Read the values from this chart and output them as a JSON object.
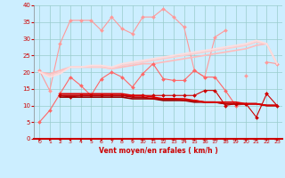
{
  "x": [
    0,
    1,
    2,
    3,
    4,
    5,
    6,
    7,
    8,
    9,
    10,
    11,
    12,
    13,
    14,
    15,
    16,
    17,
    18,
    19,
    20,
    21,
    22,
    23
  ],
  "series": [
    {
      "color": "#ff9999",
      "lw": 0.8,
      "marker": "D",
      "ms": 2.0,
      "values": [
        20.5,
        14.5,
        28.5,
        35.5,
        35.5,
        35.5,
        32.5,
        36.5,
        33.0,
        31.5,
        36.5,
        36.5,
        39.0,
        36.5,
        33.5,
        20.5,
        18.5,
        30.5,
        32.5,
        null,
        19.0,
        null,
        23.0,
        22.5
      ]
    },
    {
      "color": "#ffbbbb",
      "lw": 1.2,
      "marker": null,
      "ms": 0,
      "values": [
        20.0,
        19.5,
        20.5,
        21.5,
        21.5,
        21.5,
        21.5,
        21.0,
        21.5,
        22.0,
        22.5,
        22.5,
        23.0,
        23.5,
        24.0,
        24.5,
        25.0,
        25.5,
        26.0,
        26.5,
        27.0,
        28.0,
        28.5,
        22.5
      ]
    },
    {
      "color": "#ffcccc",
      "lw": 1.2,
      "marker": null,
      "ms": 0,
      "values": [
        20.0,
        19.0,
        20.0,
        21.5,
        21.5,
        21.5,
        21.5,
        21.0,
        22.0,
        22.5,
        23.0,
        23.5,
        24.0,
        24.5,
        25.0,
        25.5,
        26.0,
        26.5,
        27.0,
        27.5,
        28.0,
        29.0,
        28.5,
        22.5
      ]
    },
    {
      "color": "#ffdede",
      "lw": 1.2,
      "marker": null,
      "ms": 0,
      "values": [
        20.0,
        18.5,
        19.5,
        21.5,
        21.5,
        22.0,
        22.0,
        21.5,
        22.5,
        23.0,
        23.5,
        24.0,
        24.5,
        25.0,
        25.5,
        26.0,
        26.5,
        27.0,
        27.5,
        28.0,
        28.5,
        29.5,
        28.5,
        22.5
      ]
    },
    {
      "color": "#ff6666",
      "lw": 0.8,
      "marker": "D",
      "ms": 2.0,
      "values": [
        5.0,
        8.5,
        13.5,
        18.5,
        16.0,
        13.0,
        18.0,
        20.0,
        18.5,
        15.5,
        19.5,
        22.5,
        18.0,
        17.5,
        17.5,
        20.5,
        18.5,
        18.5,
        14.5,
        10.0,
        10.5,
        null,
        13.5,
        null
      ]
    },
    {
      "color": "#cc0000",
      "lw": 0.8,
      "marker": "D",
      "ms": 2.0,
      "values": [
        null,
        null,
        13.0,
        12.5,
        13.0,
        13.0,
        13.0,
        13.0,
        13.0,
        13.0,
        13.0,
        13.0,
        13.0,
        13.0,
        13.0,
        13.0,
        14.5,
        14.5,
        10.0,
        10.5,
        10.5,
        6.5,
        13.5,
        10.0
      ]
    },
    {
      "color": "#990000",
      "lw": 1.2,
      "marker": null,
      "ms": 0,
      "values": [
        null,
        null,
        12.5,
        12.5,
        12.5,
        12.5,
        12.5,
        12.5,
        12.5,
        12.0,
        12.0,
        12.0,
        11.5,
        11.5,
        11.5,
        11.0,
        11.0,
        11.0,
        10.5,
        10.5,
        10.5,
        10.5,
        10.0,
        10.0
      ]
    },
    {
      "color": "#bb0000",
      "lw": 1.2,
      "marker": null,
      "ms": 0,
      "values": [
        null,
        null,
        13.0,
        13.0,
        13.0,
        13.0,
        13.0,
        13.0,
        13.0,
        12.5,
        12.5,
        12.0,
        12.0,
        12.0,
        11.5,
        11.5,
        11.0,
        11.0,
        10.5,
        10.5,
        10.5,
        10.5,
        10.0,
        10.0
      ]
    },
    {
      "color": "#dd0000",
      "lw": 1.2,
      "marker": null,
      "ms": 0,
      "values": [
        null,
        null,
        13.5,
        13.5,
        13.5,
        13.5,
        13.5,
        13.5,
        13.5,
        13.0,
        13.0,
        12.5,
        12.0,
        12.0,
        12.0,
        11.5,
        11.0,
        11.0,
        11.0,
        11.0,
        10.5,
        10.5,
        10.0,
        10.0
      ]
    }
  ],
  "xlabel": "Vent moyen/en rafales ( km/h )",
  "ylim": [
    0,
    40
  ],
  "xlim": [
    -0.5,
    23.5
  ],
  "yticks": [
    0,
    5,
    10,
    15,
    20,
    25,
    30,
    35,
    40
  ],
  "xticks": [
    0,
    1,
    2,
    3,
    4,
    5,
    6,
    7,
    8,
    9,
    10,
    11,
    12,
    13,
    14,
    15,
    16,
    17,
    18,
    19,
    20,
    21,
    22,
    23
  ],
  "bg_color": "#cceeff",
  "grid_color": "#99cccc",
  "xlabel_color": "#cc0000",
  "tick_color": "#cc0000",
  "arrow_color": "#cc0000",
  "spine_color": "#cc0000"
}
